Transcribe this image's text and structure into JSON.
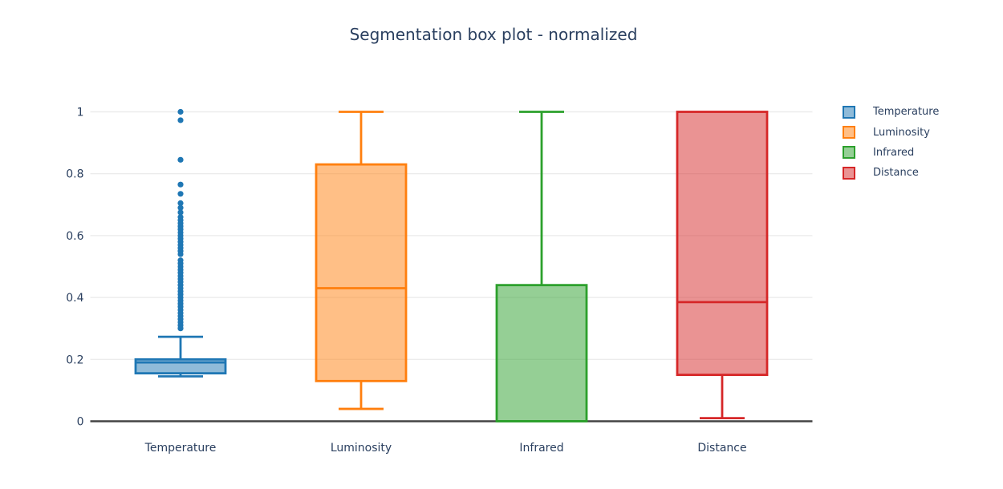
{
  "chart_data": {
    "type": "box",
    "title": "Segmentation box plot - normalized",
    "xlabel": "",
    "ylabel": "",
    "ylim": [
      0,
      1
    ],
    "yticks": [
      0,
      0.2,
      0.4,
      0.6,
      0.8,
      1
    ],
    "ytick_labels": [
      "0",
      "0.2",
      "0.4",
      "0.6",
      "0.8",
      "1"
    ],
    "grid": true,
    "legend_position": "right",
    "categories": [
      "Temperature",
      "Luminosity",
      "Infrared",
      "Distance"
    ],
    "series": [
      {
        "name": "Temperature",
        "color": "#1f77b4",
        "lo": 0.145,
        "q1": 0.155,
        "median": 0.19,
        "q3": 0.2,
        "hi": 0.273,
        "outliers": [
          1.0,
          0.973,
          0.845,
          0.765,
          0.735,
          0.705,
          0.69,
          0.675,
          0.66,
          0.65,
          0.64,
          0.63,
          0.62,
          0.61,
          0.6,
          0.59,
          0.58,
          0.57,
          0.56,
          0.55,
          0.54,
          0.52,
          0.51,
          0.5,
          0.49,
          0.48,
          0.47,
          0.46,
          0.45,
          0.44,
          0.43,
          0.42,
          0.41,
          0.4,
          0.39,
          0.38,
          0.37,
          0.36,
          0.35,
          0.34,
          0.33,
          0.32,
          0.31,
          0.3
        ]
      },
      {
        "name": "Luminosity",
        "color": "#ff7f0e",
        "lo": 0.04,
        "q1": 0.13,
        "median": 0.43,
        "q3": 0.83,
        "hi": 1.0,
        "outliers": []
      },
      {
        "name": "Infrared",
        "color": "#2ca02c",
        "lo": 0.0,
        "q1": 0.0,
        "median": 0.0,
        "q3": 0.44,
        "hi": 1.0,
        "outliers": []
      },
      {
        "name": "Distance",
        "color": "#d62728",
        "lo": 0.01,
        "q1": 0.15,
        "median": 0.385,
        "q3": 1.0,
        "hi": 1.0,
        "outliers": []
      }
    ],
    "style": {
      "font_color": "#2a3f5f",
      "grid_color": "#ececec",
      "axis_color": "#444444",
      "background": "#ffffff",
      "fill_opacity": 0.5
    }
  }
}
